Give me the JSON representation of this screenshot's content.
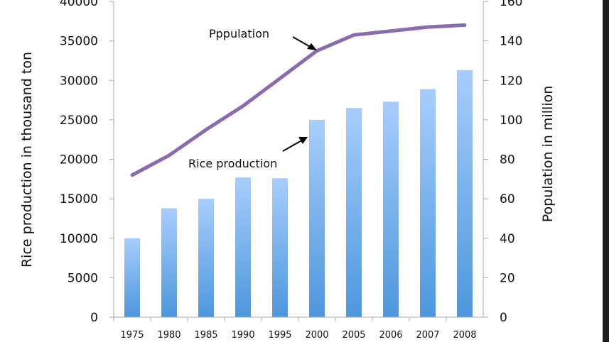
{
  "chart_data": {
    "type": "bar+line",
    "categories": [
      "1975",
      "1980",
      "1985",
      "1990",
      "1995",
      "2000",
      "2005",
      "2006",
      "2007",
      "2008"
    ],
    "series": [
      {
        "name": "Rice production",
        "kind": "bar",
        "axis": "left",
        "values": [
          10000,
          13800,
          15000,
          17700,
          17600,
          25000,
          26500,
          27300,
          28900,
          31300
        ],
        "color_top": "#a8cdfc",
        "color_bottom": "#4d97dd"
      },
      {
        "name": "Pppulation",
        "kind": "line",
        "axis": "right",
        "values": [
          72,
          82,
          95,
          107,
          121,
          135,
          143,
          145,
          147,
          148
        ],
        "color": "#8b6bb0"
      }
    ],
    "ylabel": "Rice production in thousand ton",
    "ylabel_right": "Population in million",
    "ylim": [
      0,
      40000
    ],
    "ylim_right": [
      0,
      160
    ],
    "yticks": [
      "0",
      "5000",
      "10000",
      "15000",
      "20000",
      "25000",
      "30000",
      "35000",
      "40000"
    ],
    "yticks_right": [
      "0",
      "20",
      "40",
      "60",
      "80",
      "100",
      "120",
      "140",
      "160"
    ],
    "grid": false,
    "annotations": [
      "Pppulation",
      "Rice production"
    ]
  }
}
